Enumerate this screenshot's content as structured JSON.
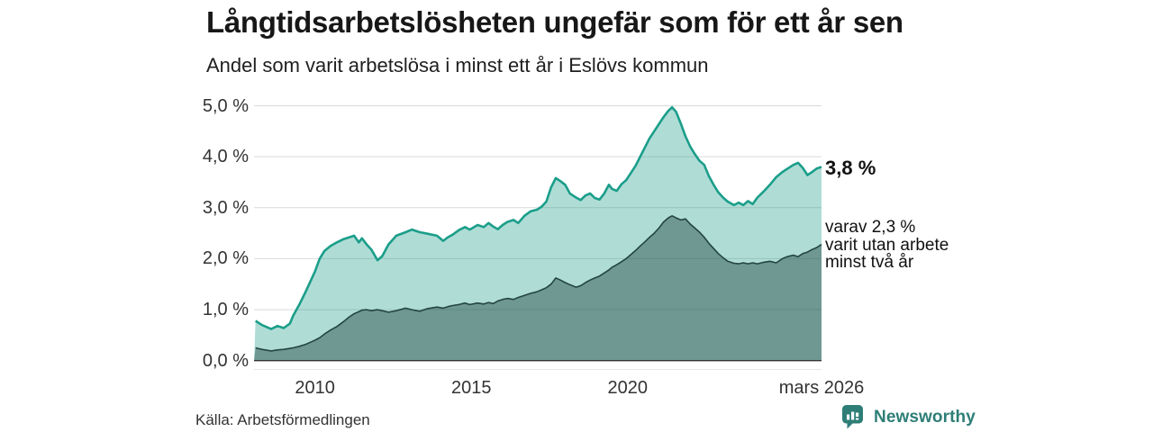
{
  "header": {
    "title": "Långtidsarbetslösheten ungefär som för ett år sen",
    "subtitle": "Andel som varit arbetslösa i minst ett år i Eslövs kommun"
  },
  "annotations": {
    "latest_total": "3,8 %",
    "secondary_line1": "varav 2,3 %",
    "secondary_line2": "varit utan arbete",
    "secondary_line3": "minst två år"
  },
  "footer": {
    "source": "Källa: Arbetsförmedlingen",
    "brand": "Newsworthy"
  },
  "colors": {
    "accent_line": "#1b9e8a",
    "accent_fill": "rgba(27,158,138,0.35)",
    "dark_line": "#24453f",
    "dark_fill": "rgba(31,69,63,0.45)",
    "gridline": "#d9d9d9",
    "baseline": "#333333",
    "subaxis": "#e7e7e7",
    "logo": "#2e7e77"
  },
  "chart_data": {
    "type": "area",
    "title": "Långtidsarbetslösheten ungefär som för ett år sen",
    "subtitle": "Andel som varit arbetslösa i minst ett år i Eslövs kommun",
    "xlabel": "",
    "ylabel": "",
    "xlim": [
      2008.05,
      2026.2
    ],
    "ylim": [
      0,
      5
    ],
    "grid": true,
    "legend_position": "right-annotations",
    "y_ticks": [
      {
        "v": 5.0,
        "label": "5,0 %"
      },
      {
        "v": 4.0,
        "label": "4,0 %"
      },
      {
        "v": 3.0,
        "label": "3,0 %"
      },
      {
        "v": 2.0,
        "label": "2,0 %"
      },
      {
        "v": 1.0,
        "label": "1,0 %"
      },
      {
        "v": 0.0,
        "label": "0,0 %"
      }
    ],
    "x_ticks": [
      {
        "x": 2010,
        "label": "2010"
      },
      {
        "x": 2015,
        "label": "2015"
      },
      {
        "x": 2020,
        "label": "2020"
      },
      {
        "x": 2026.2,
        "label": "mars 2026"
      }
    ],
    "x": [
      2008.1,
      2008.3,
      2008.6,
      2008.8,
      2009.0,
      2009.2,
      2009.3,
      2009.5,
      2009.7,
      2009.85,
      2010.0,
      2010.15,
      2010.3,
      2010.5,
      2010.7,
      2010.9,
      2011.1,
      2011.25,
      2011.4,
      2011.5,
      2011.65,
      2011.8,
      2012.0,
      2012.15,
      2012.35,
      2012.6,
      2012.9,
      2013.1,
      2013.35,
      2013.6,
      2013.9,
      2014.1,
      2014.25,
      2014.4,
      2014.6,
      2014.8,
      2014.95,
      2015.2,
      2015.4,
      2015.55,
      2015.7,
      2015.85,
      2016.0,
      2016.15,
      2016.35,
      2016.5,
      2016.7,
      2016.9,
      2017.1,
      2017.25,
      2017.4,
      2017.55,
      2017.7,
      2017.85,
      2018.0,
      2018.15,
      2018.35,
      2018.5,
      2018.65,
      2018.8,
      2018.95,
      2019.1,
      2019.25,
      2019.4,
      2019.5,
      2019.65,
      2019.8,
      2019.95,
      2020.1,
      2020.25,
      2020.4,
      2020.55,
      2020.7,
      2020.85,
      2021.0,
      2021.15,
      2021.3,
      2021.42,
      2021.55,
      2021.7,
      2021.85,
      2022.0,
      2022.15,
      2022.3,
      2022.45,
      2022.6,
      2022.75,
      2022.9,
      2023.05,
      2023.2,
      2023.4,
      2023.55,
      2023.7,
      2023.85,
      2024.0,
      2024.15,
      2024.35,
      2024.55,
      2024.75,
      2024.95,
      2025.1,
      2025.3,
      2025.45,
      2025.6,
      2025.75,
      2025.9,
      2026.05,
      2026.2
    ],
    "series": [
      {
        "name": "Andel arbetslösa minst ett år",
        "end_label": "3,8 %",
        "end_value": 3.8,
        "values": [
          0.78,
          0.7,
          0.62,
          0.68,
          0.64,
          0.73,
          0.88,
          1.1,
          1.35,
          1.55,
          1.75,
          2.0,
          2.15,
          2.25,
          2.32,
          2.38,
          2.42,
          2.45,
          2.32,
          2.4,
          2.28,
          2.18,
          1.97,
          2.05,
          2.28,
          2.45,
          2.52,
          2.57,
          2.52,
          2.49,
          2.45,
          2.35,
          2.42,
          2.47,
          2.56,
          2.62,
          2.57,
          2.66,
          2.62,
          2.7,
          2.63,
          2.58,
          2.66,
          2.72,
          2.76,
          2.7,
          2.84,
          2.93,
          2.96,
          3.02,
          3.12,
          3.4,
          3.58,
          3.52,
          3.45,
          3.28,
          3.2,
          3.15,
          3.24,
          3.28,
          3.19,
          3.16,
          3.28,
          3.45,
          3.37,
          3.33,
          3.46,
          3.54,
          3.68,
          3.82,
          4.0,
          4.18,
          4.36,
          4.5,
          4.64,
          4.78,
          4.9,
          4.97,
          4.88,
          4.65,
          4.4,
          4.2,
          4.05,
          3.92,
          3.84,
          3.62,
          3.45,
          3.3,
          3.2,
          3.12,
          3.05,
          3.1,
          3.05,
          3.13,
          3.07,
          3.2,
          3.32,
          3.45,
          3.6,
          3.7,
          3.76,
          3.84,
          3.88,
          3.78,
          3.64,
          3.7,
          3.77,
          3.8
        ]
      },
      {
        "name": "varav utan arbete minst två år",
        "end_label": "varav 2,3 % varit utan arbete minst två år",
        "end_value": 2.3,
        "values": [
          0.25,
          0.22,
          0.19,
          0.21,
          0.22,
          0.24,
          0.25,
          0.28,
          0.32,
          0.36,
          0.4,
          0.45,
          0.52,
          0.6,
          0.67,
          0.76,
          0.86,
          0.92,
          0.96,
          0.99,
          1.0,
          0.98,
          1.0,
          0.98,
          0.95,
          0.98,
          1.03,
          1.0,
          0.97,
          1.02,
          1.05,
          1.03,
          1.06,
          1.08,
          1.1,
          1.13,
          1.1,
          1.13,
          1.11,
          1.14,
          1.12,
          1.17,
          1.2,
          1.22,
          1.2,
          1.24,
          1.28,
          1.32,
          1.35,
          1.39,
          1.43,
          1.5,
          1.62,
          1.58,
          1.53,
          1.49,
          1.44,
          1.47,
          1.53,
          1.58,
          1.62,
          1.66,
          1.72,
          1.78,
          1.83,
          1.88,
          1.94,
          2.0,
          2.08,
          2.16,
          2.25,
          2.33,
          2.42,
          2.5,
          2.6,
          2.72,
          2.8,
          2.84,
          2.8,
          2.76,
          2.78,
          2.68,
          2.6,
          2.52,
          2.42,
          2.3,
          2.2,
          2.1,
          2.02,
          1.95,
          1.91,
          1.9,
          1.92,
          1.9,
          1.92,
          1.9,
          1.93,
          1.95,
          1.92,
          2.0,
          2.04,
          2.07,
          2.04,
          2.1,
          2.13,
          2.18,
          2.22,
          2.28
        ]
      }
    ]
  }
}
